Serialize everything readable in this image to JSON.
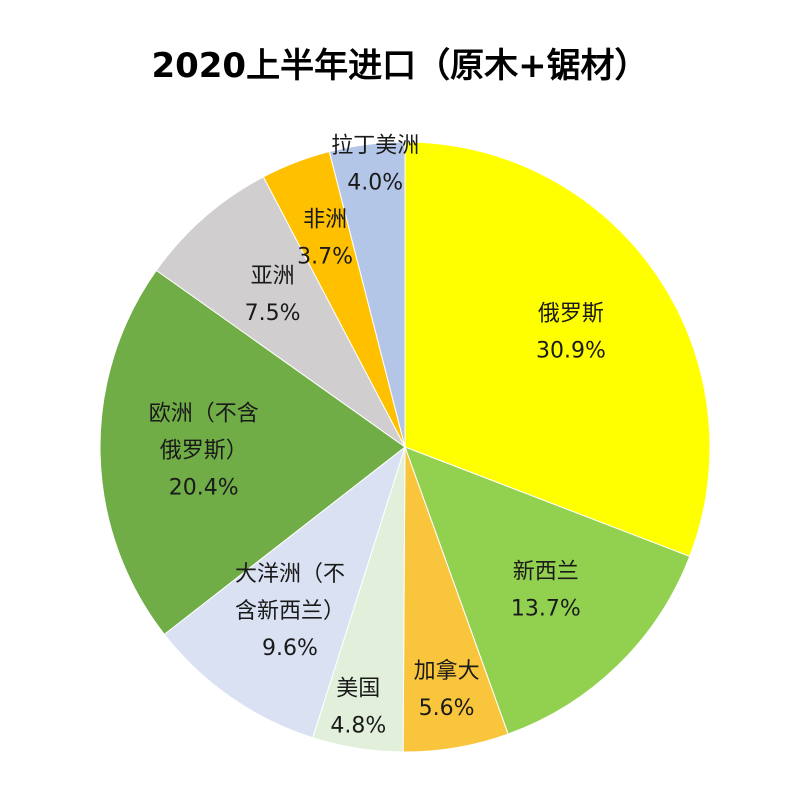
{
  "chart_data": {
    "type": "pie",
    "title": "2020上半年进口（原木+锯材）",
    "start_angle_deg": 0,
    "direction": "clockwise",
    "slices": [
      {
        "label": [
          "俄罗斯"
        ],
        "value": 30.9,
        "value_text": "30.9%",
        "color": "#ffff00"
      },
      {
        "label": [
          "新西兰"
        ],
        "value": 13.7,
        "value_text": "13.7%",
        "color": "#92d050"
      },
      {
        "label": [
          "加拿大"
        ],
        "value": 5.6,
        "value_text": "5.6%",
        "color": "#f9c53c"
      },
      {
        "label": [
          "美国"
        ],
        "value": 4.8,
        "value_text": "4.8%",
        "color": "#e2efda"
      },
      {
        "label": [
          "大洋洲（不",
          "含新西兰）"
        ],
        "value": 9.6,
        "value_text": "9.6%",
        "color": "#d9e1f2"
      },
      {
        "label": [
          "欧洲（不含",
          "俄罗斯）"
        ],
        "value": 20.4,
        "value_text": "20.4%",
        "color": "#70ad47"
      },
      {
        "label": [
          "亚洲"
        ],
        "value": 7.5,
        "value_text": "7.5%",
        "color": "#d0cece"
      },
      {
        "label": [
          "非洲"
        ],
        "value": 3.7,
        "value_text": "3.7%",
        "color": "#ffc000"
      },
      {
        "label": [
          "拉丁美洲"
        ],
        "value": 4.0,
        "value_text": "4.0%",
        "color": "#b4c6e7"
      }
    ]
  }
}
